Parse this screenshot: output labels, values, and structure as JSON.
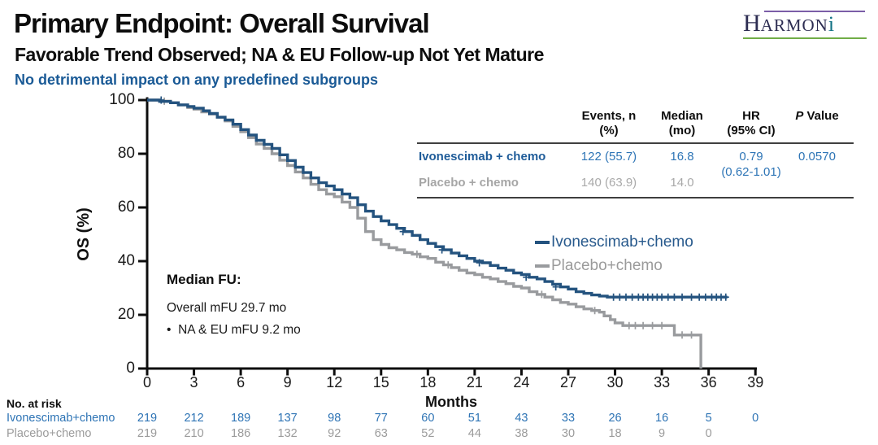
{
  "slide": {
    "title": "Primary Endpoint: Overall Survival",
    "subtitle": "Favorable Trend Observed; NA & EU Follow-up Not Yet Mature",
    "note": "No detrimental impact on any predefined subgroups",
    "logo": {
      "h": "H",
      "armon": "ARMON",
      "i": "i",
      "top_line_color": "#7b5ea7",
      "bottom_line_color": "#70ad47"
    }
  },
  "results_table": {
    "headers": [
      {
        "line1": "Events, n",
        "line2": "(%)"
      },
      {
        "line1": "Median",
        "line2": "(mo)"
      },
      {
        "line1": "HR",
        "line2": "(95% CI)"
      },
      {
        "line1_italic": "P",
        "line1_rest": " Value",
        "line2": ""
      }
    ],
    "rows": [
      {
        "label": "Ivonescimab + chemo",
        "events": "122 (55.7)",
        "median": "16.8",
        "hr": "0.79",
        "hr_ci": "(0.62-1.01)",
        "p": "0.0570"
      },
      {
        "label": "Placebo + chemo",
        "events": "140 (63.9)",
        "median": "14.0"
      }
    ]
  },
  "annotation": {
    "heading": "Median FU:",
    "line1": "Overall mFU 29.7 mo",
    "bullet": "•",
    "line2": "NA & EU mFU 9.2 mo"
  },
  "legend": [
    {
      "label": "Ivonescimab+chemo",
      "color": "#24537f",
      "text_color": "#27598c"
    },
    {
      "label": "Placebo+chemo",
      "color": "#999b9e",
      "text_color": "#9b9b9b"
    }
  ],
  "chart_data": {
    "type": "line",
    "subtype": "kaplan-meier-step",
    "title": "",
    "xlabel": "Months",
    "ylabel": "OS (%)",
    "xlim": [
      0,
      39
    ],
    "ylim": [
      0,
      100
    ],
    "x_ticks": [
      0,
      3,
      6,
      9,
      12,
      15,
      18,
      21,
      24,
      27,
      30,
      33,
      36,
      39
    ],
    "y_ticks": [
      0,
      20,
      40,
      60,
      80,
      100
    ],
    "grid": false,
    "legend_position": "right-middle",
    "series": [
      {
        "name": "Ivonescimab+chemo",
        "color": "#24537f",
        "median_months": 16.8,
        "points": [
          [
            0,
            100
          ],
          [
            0.8,
            99.5
          ],
          [
            1.5,
            99
          ],
          [
            2,
            98.2
          ],
          [
            2.6,
            97.6
          ],
          [
            3,
            97
          ],
          [
            3.6,
            96
          ],
          [
            4,
            95
          ],
          [
            4.5,
            93.6
          ],
          [
            5,
            92.6
          ],
          [
            5.5,
            91
          ],
          [
            6,
            89
          ],
          [
            6.5,
            87
          ],
          [
            7,
            85
          ],
          [
            7.5,
            83.5
          ],
          [
            8,
            82
          ],
          [
            8.5,
            79.6
          ],
          [
            9,
            77.5
          ],
          [
            9.5,
            75
          ],
          [
            10,
            73
          ],
          [
            10.5,
            71
          ],
          [
            11,
            69.2
          ],
          [
            11.5,
            68
          ],
          [
            12,
            66.6
          ],
          [
            12.5,
            65
          ],
          [
            13,
            63.6
          ],
          [
            13.5,
            61
          ],
          [
            14,
            58.6
          ],
          [
            14.5,
            56.6
          ],
          [
            15,
            55
          ],
          [
            15.5,
            53.6
          ],
          [
            16,
            52.2
          ],
          [
            16.5,
            51
          ],
          [
            17,
            49.6
          ],
          [
            17.5,
            48
          ],
          [
            18,
            46.6
          ],
          [
            18.5,
            45.4
          ],
          [
            19,
            44.2
          ],
          [
            19.5,
            43
          ],
          [
            20,
            42
          ],
          [
            20.5,
            41
          ],
          [
            21,
            40
          ],
          [
            21.5,
            39.4
          ],
          [
            22,
            38.4
          ],
          [
            22.5,
            37.4
          ],
          [
            23,
            36.6
          ],
          [
            23.5,
            35.6
          ],
          [
            24,
            35
          ],
          [
            24.5,
            34
          ],
          [
            25,
            33.4
          ],
          [
            25.5,
            32.4
          ],
          [
            26,
            31.4
          ],
          [
            26.5,
            30.4
          ],
          [
            27,
            29.6
          ],
          [
            27.5,
            28.6
          ],
          [
            28,
            28
          ],
          [
            28.5,
            27.4
          ],
          [
            29,
            27
          ],
          [
            29.5,
            26.6
          ],
          [
            37.2,
            26.6
          ]
        ],
        "censor_marks": [
          [
            0.9,
            100
          ],
          [
            16.4,
            51
          ],
          [
            18.9,
            44.2
          ],
          [
            21.3,
            39.4
          ],
          [
            24.3,
            34
          ],
          [
            26.2,
            30.4
          ],
          [
            29.9,
            26.6
          ],
          [
            30.3,
            26.6
          ],
          [
            30.7,
            26.6
          ],
          [
            31.1,
            26.6
          ],
          [
            31.5,
            26.6
          ],
          [
            31.8,
            26.6
          ],
          [
            32.1,
            26.6
          ],
          [
            32.4,
            26.6
          ],
          [
            32.7,
            26.6
          ],
          [
            33.0,
            26.6
          ],
          [
            33.4,
            26.6
          ],
          [
            33.8,
            26.6
          ],
          [
            34.3,
            26.6
          ],
          [
            34.9,
            26.6
          ],
          [
            35.4,
            26.6
          ],
          [
            35.8,
            26.6
          ],
          [
            36.2,
            26.6
          ],
          [
            36.5,
            26.6
          ],
          [
            36.8,
            26.6
          ],
          [
            37.1,
            26.6
          ]
        ]
      },
      {
        "name": "Placebo+chemo",
        "color": "#999b9e",
        "median_months": 14.0,
        "points": [
          [
            0,
            100
          ],
          [
            0.8,
            99.6
          ],
          [
            1.5,
            99
          ],
          [
            2,
            98.2
          ],
          [
            2.6,
            97.2
          ],
          [
            3,
            96.6
          ],
          [
            3.5,
            95.6
          ],
          [
            4,
            94.8
          ],
          [
            4.5,
            93.6
          ],
          [
            5,
            92.2
          ],
          [
            5.5,
            90.2
          ],
          [
            6,
            88.2
          ],
          [
            6.5,
            86
          ],
          [
            7,
            83.6
          ],
          [
            7.5,
            82
          ],
          [
            8,
            80
          ],
          [
            8.5,
            77.6
          ],
          [
            9,
            75.6
          ],
          [
            9.5,
            73.2
          ],
          [
            10,
            71
          ],
          [
            10.5,
            68.6
          ],
          [
            11,
            66.6
          ],
          [
            11.5,
            65
          ],
          [
            12,
            64
          ],
          [
            12.5,
            62
          ],
          [
            13,
            60
          ],
          [
            13.5,
            56
          ],
          [
            14,
            51
          ],
          [
            14.5,
            48
          ],
          [
            15,
            46.2
          ],
          [
            15.5,
            45
          ],
          [
            16,
            44.2
          ],
          [
            16.5,
            43.2
          ],
          [
            17,
            42.6
          ],
          [
            17.5,
            41.6
          ],
          [
            18,
            41
          ],
          [
            18.5,
            39.6
          ],
          [
            19,
            38.6
          ],
          [
            19.5,
            37.6
          ],
          [
            20,
            36.6
          ],
          [
            20.5,
            35.6
          ],
          [
            21,
            35
          ],
          [
            21.5,
            34
          ],
          [
            22,
            33.4
          ],
          [
            22.5,
            32.4
          ],
          [
            23,
            31.6
          ],
          [
            23.5,
            30.6
          ],
          [
            24,
            30
          ],
          [
            24.5,
            28.6
          ],
          [
            25,
            27.6
          ],
          [
            25.5,
            26.6
          ],
          [
            26,
            25.6
          ],
          [
            26.5,
            24.6
          ],
          [
            27,
            24
          ],
          [
            27.5,
            23
          ],
          [
            28,
            22.2
          ],
          [
            28.5,
            21.6
          ],
          [
            29,
            21
          ],
          [
            29.3,
            19.6
          ],
          [
            29.7,
            18.2
          ],
          [
            30,
            17
          ],
          [
            30.5,
            16
          ],
          [
            33.6,
            16
          ],
          [
            33.8,
            12.5
          ],
          [
            35.5,
            12.5
          ],
          [
            35.5,
            0
          ]
        ],
        "censor_marks": [
          [
            1.1,
            99.6
          ],
          [
            17.3,
            42.6
          ],
          [
            19.3,
            38.6
          ],
          [
            25.3,
            27.6
          ],
          [
            28.7,
            21.6
          ],
          [
            30.9,
            16
          ],
          [
            31.3,
            16
          ],
          [
            31.8,
            16
          ],
          [
            32.4,
            16
          ],
          [
            33.0,
            16
          ],
          [
            34.3,
            12.5
          ],
          [
            34.9,
            12.5
          ]
        ]
      }
    ]
  },
  "risk_table": {
    "heading": "No. at risk",
    "rows": [
      {
        "label": "Ivonescimab+chemo",
        "color": "#2e74b5",
        "values": [
          "219",
          "212",
          "189",
          "137",
          "98",
          "77",
          "60",
          "51",
          "43",
          "33",
          "26",
          "16",
          "5",
          "0"
        ]
      },
      {
        "label": "Placebo+chemo",
        "color": "#9b9b9b",
        "values": [
          "219",
          "210",
          "186",
          "132",
          "92",
          "63",
          "52",
          "44",
          "38",
          "30",
          "18",
          "9",
          "0"
        ]
      }
    ]
  }
}
